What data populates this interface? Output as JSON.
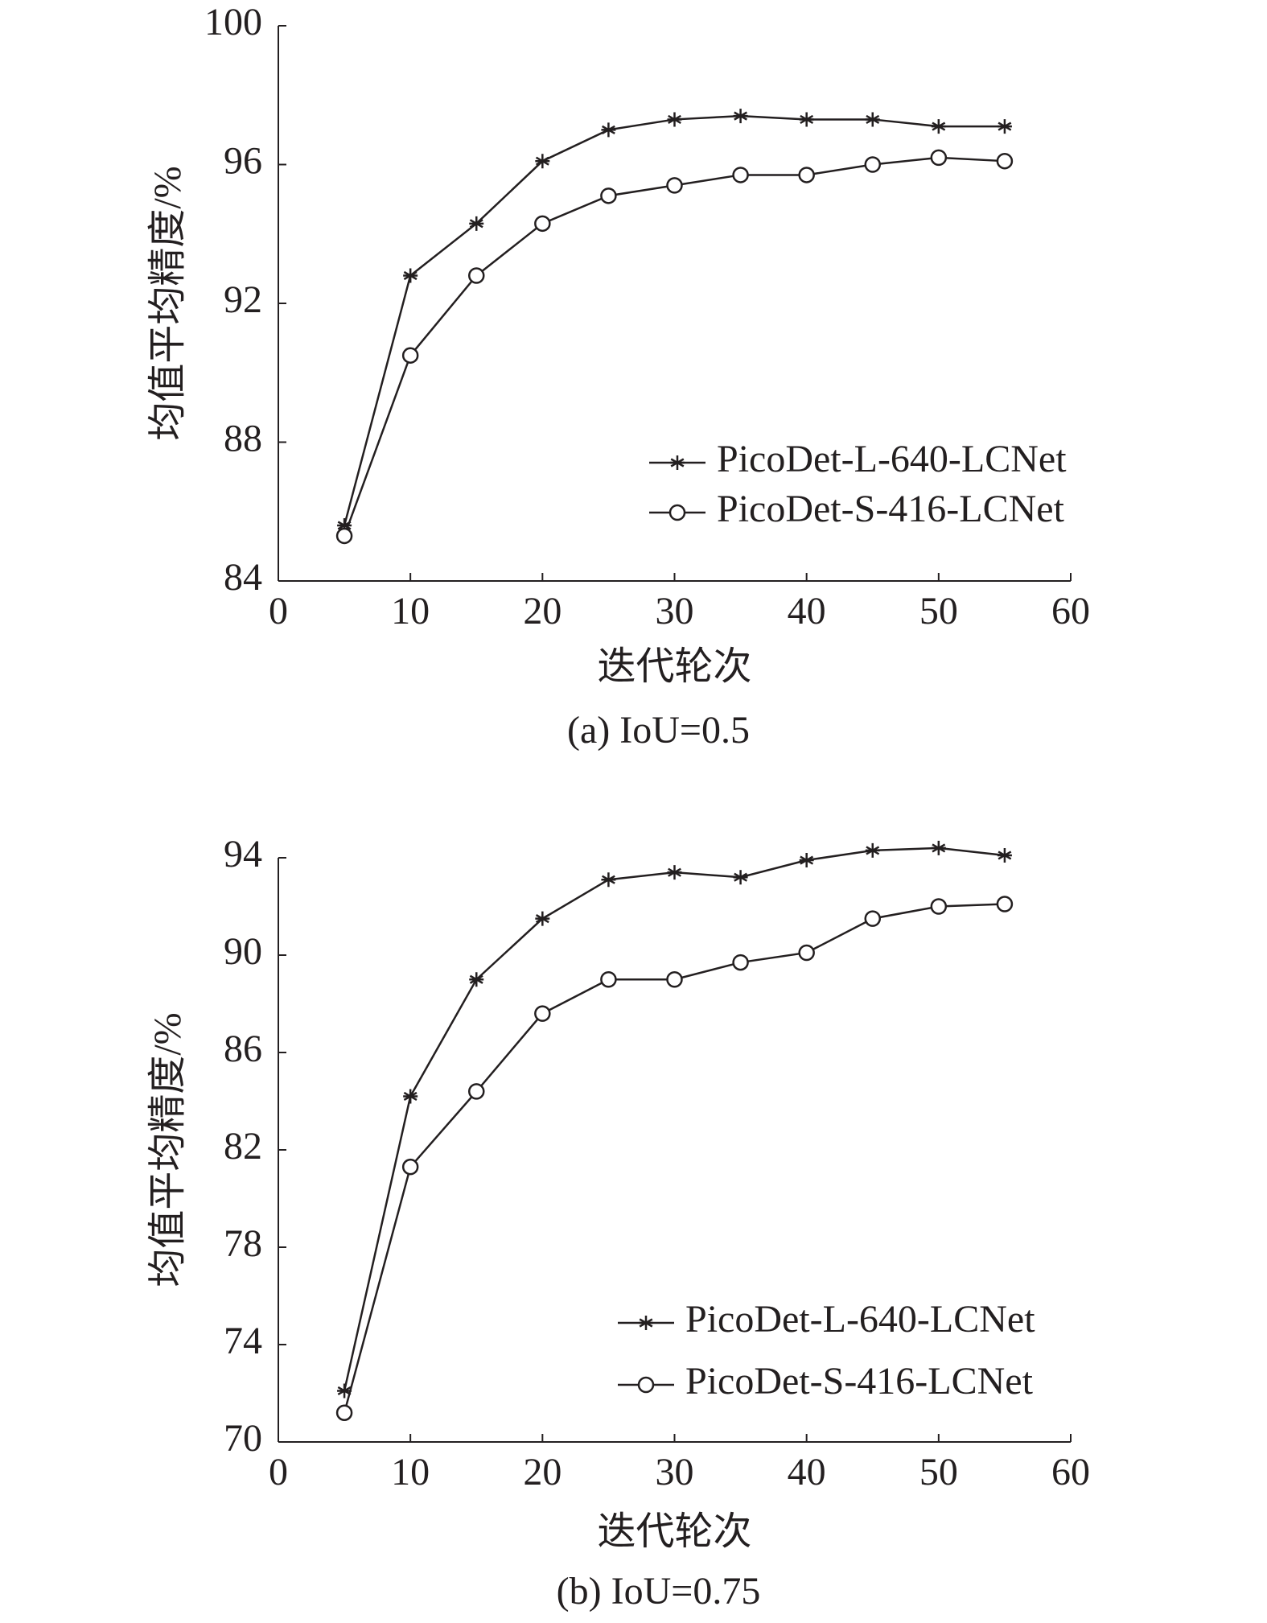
{
  "chart_data": [
    {
      "type": "line",
      "caption": "(a) IoU=0.5",
      "xlabel": "迭代轮次",
      "ylabel": "均值平均精度/%",
      "x": [
        5,
        10,
        15,
        20,
        25,
        30,
        35,
        40,
        45,
        50,
        55
      ],
      "series": [
        {
          "name": "PicoDet-L-640-LCNet",
          "color": "#231f20",
          "marker": "star",
          "values": [
            85.6,
            92.8,
            94.3,
            96.1,
            97.0,
            97.3,
            97.4,
            97.3,
            97.3,
            97.1,
            97.1
          ]
        },
        {
          "name": "PicoDet-S-416-LCNet",
          "color": "#231f20",
          "marker": "circle",
          "values": [
            85.3,
            90.5,
            92.8,
            94.3,
            95.1,
            95.4,
            95.7,
            95.7,
            96.0,
            96.2,
            96.1
          ]
        }
      ],
      "xlim": [
        0,
        60
      ],
      "xticks": [
        0,
        10,
        20,
        30,
        40,
        50,
        60
      ],
      "ylim": [
        84,
        100
      ],
      "yticks": [
        84,
        88,
        92,
        96,
        100
      ],
      "legend": "lower right"
    },
    {
      "type": "line",
      "caption": "(b) IoU=0.75",
      "xlabel": "迭代轮次",
      "ylabel": "均值平均精度/%",
      "x": [
        5,
        10,
        15,
        20,
        25,
        30,
        35,
        40,
        45,
        50,
        55
      ],
      "series": [
        {
          "name": "PicoDet-L-640-LCNet",
          "color": "#231f20",
          "marker": "star",
          "values": [
            72.1,
            84.2,
            89.0,
            91.5,
            93.1,
            93.4,
            93.2,
            93.9,
            94.3,
            94.4,
            94.1
          ]
        },
        {
          "name": "PicoDet-S-416-LCNet",
          "color": "#231f20",
          "marker": "circle",
          "values": [
            71.2,
            81.3,
            84.4,
            87.6,
            89.0,
            89.0,
            89.7,
            90.1,
            91.5,
            92.0,
            92.1
          ]
        }
      ],
      "xlim": [
        0,
        60
      ],
      "xticks": [
        0,
        10,
        20,
        30,
        40,
        50,
        60
      ],
      "ylim": [
        70,
        94
      ],
      "yticks": [
        70,
        74,
        78,
        82,
        86,
        90,
        94
      ],
      "legend": "lower right"
    }
  ]
}
